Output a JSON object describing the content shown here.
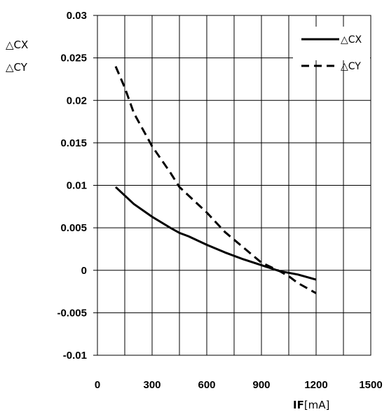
{
  "chart_data": {
    "type": "line",
    "title": "",
    "xlabel_bold": "IF",
    "xlabel_unit": "[mA]",
    "ylabel_lines": [
      "△CX",
      "△CY"
    ],
    "xlim": [
      0,
      1500
    ],
    "ylim": [
      -0.01,
      0.03
    ],
    "xticks": [
      0,
      300,
      600,
      900,
      1200,
      1500
    ],
    "xtick_labels": [
      "0",
      "300",
      "600",
      "900",
      "1200",
      "1500"
    ],
    "yticks": [
      -0.01,
      -0.005,
      0,
      0.005,
      0.01,
      0.015,
      0.02,
      0.025,
      0.03
    ],
    "ytick_labels": [
      "-0.01",
      "-0.005",
      "0",
      "0.005",
      "0.01",
      "0.015",
      "0.02",
      "0.025",
      "0.03"
    ],
    "x_gridline_step": 150,
    "grid": true,
    "legend_position": "top-right",
    "series": [
      {
        "name": "△CX",
        "style": "solid",
        "color": "#000000",
        "x": [
          100,
          150,
          200,
          300,
          400,
          450,
          500,
          600,
          700,
          800,
          900,
          1000,
          1100,
          1200
        ],
        "y": [
          0.0098,
          0.0088,
          0.0078,
          0.0063,
          0.005,
          0.0044,
          0.004,
          0.003,
          0.0021,
          0.0013,
          0.0006,
          -0.0001,
          -0.0005,
          -0.0011
        ]
      },
      {
        "name": "△CY",
        "style": "dashed",
        "color": "#000000",
        "x": [
          100,
          150,
          200,
          300,
          400,
          450,
          500,
          600,
          700,
          800,
          900,
          1000,
          1050,
          1100,
          1200
        ],
        "y": [
          0.024,
          0.0215,
          0.0185,
          0.0146,
          0.0115,
          0.0098,
          0.0088,
          0.0068,
          0.0045,
          0.0027,
          0.0009,
          -0.0001,
          -0.0007,
          -0.0015,
          -0.0027
        ]
      }
    ]
  }
}
